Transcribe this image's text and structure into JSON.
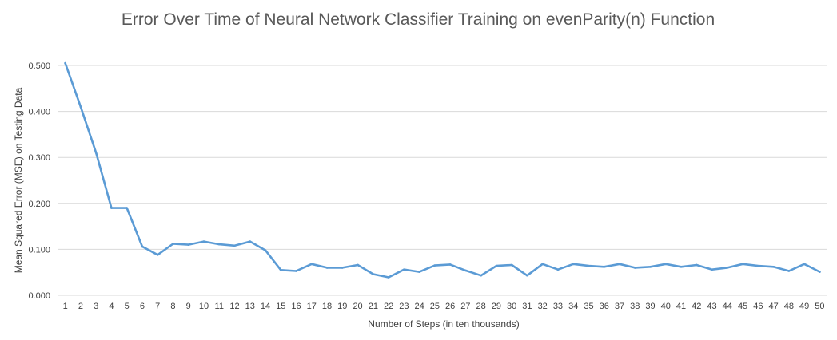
{
  "chart_data": {
    "type": "line",
    "title": "Error Over Time of Neural Network Classifier Training on evenParity(n) Function",
    "xlabel": "Number of Steps (in ten thousands)",
    "ylabel": "Mean Squared Error (MSE) on Testing Data",
    "ylim": [
      0,
      0.5
    ],
    "y_ticks": [
      "0.000",
      "0.100",
      "0.200",
      "0.300",
      "0.400",
      "0.500"
    ],
    "grid": true,
    "legend": "none",
    "categories": [
      "1",
      "2",
      "3",
      "4",
      "5",
      "6",
      "7",
      "8",
      "9",
      "10",
      "11",
      "12",
      "13",
      "14",
      "15",
      "16",
      "17",
      "18",
      "19",
      "20",
      "21",
      "22",
      "23",
      "24",
      "25",
      "26",
      "27",
      "28",
      "29",
      "30",
      "31",
      "32",
      "33",
      "34",
      "35",
      "36",
      "37",
      "38",
      "39",
      "40",
      "41",
      "42",
      "43",
      "44",
      "45",
      "46",
      "47",
      "48",
      "49",
      "50"
    ],
    "series": [
      {
        "color": "#5b9bd5",
        "values": [
          0.505,
          0.41,
          0.31,
          0.19,
          0.19,
          0.106,
          0.088,
          0.112,
          0.11,
          0.117,
          0.111,
          0.108,
          0.117,
          0.098,
          0.055,
          0.053,
          0.068,
          0.06,
          0.06,
          0.066,
          0.046,
          0.039,
          0.056,
          0.051,
          0.065,
          0.067,
          0.054,
          0.043,
          0.064,
          0.066,
          0.043,
          0.068,
          0.056,
          0.068,
          0.064,
          0.062,
          0.068,
          0.06,
          0.062,
          0.068,
          0.062,
          0.066,
          0.056,
          0.06,
          0.068,
          0.064,
          0.062,
          0.053,
          0.068,
          0.051
        ]
      }
    ]
  }
}
